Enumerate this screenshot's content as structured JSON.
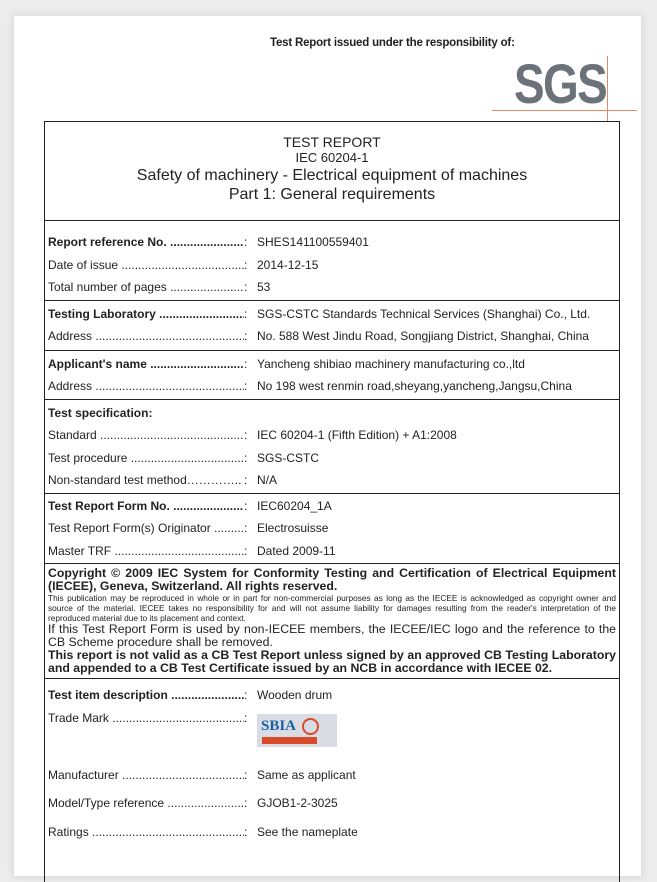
{
  "header": {
    "issued_by": "Test Report issued under the responsibility of:",
    "logo_text": "SGS"
  },
  "title": {
    "line1": "TEST REPORT",
    "line2": "IEC 60204-1",
    "line3": "Safety of machinery - Electrical equipment of machines",
    "line4": "Part 1: General requirements"
  },
  "sections": [
    {
      "rows": [
        {
          "label": "Report reference No. ......................",
          "bold": true,
          "value": "SHES141100559401"
        },
        {
          "label": "Date of issue ..........................................",
          "bold": false,
          "value": "2014-12-15"
        },
        {
          "label": "Total number of pages .......................",
          "bold": false,
          "value": "53"
        }
      ]
    },
    {
      "rows": [
        {
          "label": "Testing Laboratory ..............................",
          "bold": true,
          "value": "SGS-CSTC Standards Technical Services (Shanghai) Co., Ltd."
        },
        {
          "label": "Address .................................................",
          "bold": false,
          "value": "No. 588 West Jindu Road, Songjiang District, Shanghai, China"
        }
      ]
    },
    {
      "rows": [
        {
          "label": "Applicant's name ................................",
          "bold": true,
          "value": "Yancheng shibiao machinery manufacturing co.,ltd"
        },
        {
          "label": "Address .................................................",
          "bold": false,
          "value": "No 198 west renmin road,sheyang,yancheng,Jangsu,China"
        }
      ]
    },
    {
      "rows": [
        {
          "label": "Test specification:",
          "bold": true,
          "value": "",
          "nocolon": true
        },
        {
          "label": "Standard ................................................",
          "bold": false,
          "value": "IEC 60204-1 (Fifth Edition) + A1:2008"
        },
        {
          "label": "Test procedure .......................................",
          "bold": false,
          "value": "SGS-CSTC"
        },
        {
          "label": "Non-standard test method…………..",
          "bold": false,
          "value": "N/A"
        }
      ]
    },
    {
      "rows": [
        {
          "label": "Test Report Form No. .........................",
          "bold": true,
          "value": "IEC60204_1A"
        },
        {
          "label": "Test Report Form(s) Originator .........",
          "bold": false,
          "value": "Electrosuisse"
        },
        {
          "label": "Master TRF ...........................................",
          "bold": false,
          "value": "Dated 2009-11"
        }
      ]
    }
  ],
  "copyright": {
    "heading": "Copyright © 2009 IEC System for Conformity Testing and Certification of Electrical Equipment (IECEE), Geneva, Switzerland. All rights reserved.",
    "notice": "This publication may be reproduced in whole or in part for non-commercial purposes as long as the IECEE is acknowledged as copyright owner and source of the material. IECEE takes no responsibility for and will not assume liability for damages resulting from the reader's interpretation of the reproduced material due to its placement and context.",
    "non_member": "If this Test Report Form is used by non-IECEE members, the IECEE/IEC logo and the reference to the CB Scheme procedure shall be removed.",
    "validity": "This report is not valid as a CB Test Report unless signed by an approved CB Testing Laboratory and appended to a CB Test Certificate issued by an NCB in accordance with IECEE 02."
  },
  "item": {
    "description_label": "Test item description ......................",
    "description": "Wooden drum",
    "trademark_label": "Trade Mark ..............................................",
    "trademark_logo_text": "SBIA",
    "manufacturer_label": "Manufacturer .........................................",
    "manufacturer": "Same as applicant",
    "model_label": "Model/Type reference .........................",
    "model": "GJOB1-2-3025",
    "ratings_label": "Ratings ....................................................",
    "ratings": "See the nameplate"
  },
  "colon": ":"
}
